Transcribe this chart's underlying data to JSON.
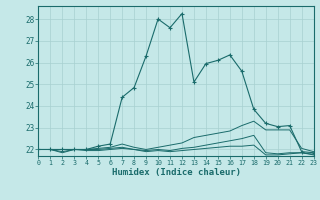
{
  "xlabel": "Humidex (Indice chaleur)",
  "xlim": [
    0,
    23
  ],
  "ylim": [
    21.7,
    28.6
  ],
  "yticks": [
    22,
    23,
    24,
    25,
    26,
    27,
    28
  ],
  "xticks": [
    0,
    1,
    2,
    3,
    4,
    5,
    6,
    7,
    8,
    9,
    10,
    11,
    12,
    13,
    14,
    15,
    16,
    17,
    18,
    19,
    20,
    21,
    22,
    23
  ],
  "bg_color": "#c5e8e8",
  "line_color": "#1a6b6b",
  "grid_color": "#a8d0d0",
  "lines": [
    [
      22.0,
      22.0,
      21.85,
      22.0,
      21.95,
      21.95,
      22.0,
      22.05,
      22.0,
      21.9,
      21.95,
      21.9,
      21.95,
      22.0,
      22.05,
      22.1,
      22.15,
      22.15,
      22.2,
      21.75,
      21.75,
      21.8,
      21.85,
      21.75
    ],
    [
      22.0,
      22.0,
      21.9,
      22.0,
      22.0,
      22.0,
      22.05,
      22.1,
      22.0,
      21.95,
      22.0,
      21.95,
      22.05,
      22.1,
      22.2,
      22.3,
      22.4,
      22.5,
      22.65,
      21.85,
      21.8,
      21.85,
      21.85,
      21.78
    ],
    [
      22.0,
      22.0,
      22.0,
      22.0,
      22.0,
      22.05,
      22.1,
      22.25,
      22.1,
      22.0,
      22.1,
      22.2,
      22.3,
      22.55,
      22.65,
      22.75,
      22.85,
      23.1,
      23.3,
      22.9,
      22.9,
      22.9,
      22.05,
      21.9
    ],
    [
      22.0,
      22.0,
      22.0,
      22.0,
      22.0,
      22.15,
      22.25,
      24.4,
      24.85,
      26.3,
      28.0,
      27.6,
      28.25,
      25.1,
      25.95,
      26.1,
      26.35,
      25.6,
      23.85,
      23.2,
      23.05,
      23.1,
      21.9,
      21.85
    ]
  ]
}
